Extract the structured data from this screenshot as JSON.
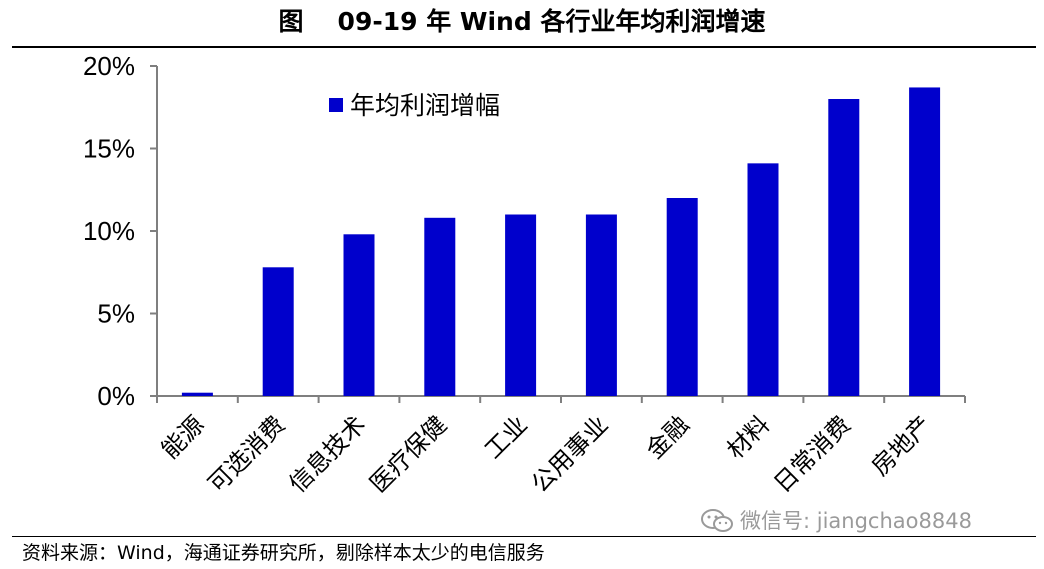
{
  "header": {
    "figure_label": "图",
    "title": "09-19 年 Wind 各行业年均利润增速"
  },
  "chart_data": {
    "type": "bar",
    "title": "",
    "xlabel": "",
    "ylabel": "",
    "categories": [
      "能源",
      "可选消费",
      "信息技术",
      "医疗保健",
      "工业",
      "公用事业",
      "金融",
      "材料",
      "日常消费",
      "房地产"
    ],
    "series": [
      {
        "name": "年均利润增幅",
        "values": [
          0.2,
          7.8,
          9.8,
          10.8,
          11.0,
          11.0,
          12.0,
          14.1,
          18.0,
          18.7
        ]
      }
    ],
    "ylim": [
      0,
      20
    ],
    "yticks": [
      0,
      5,
      10,
      15,
      20
    ],
    "ytick_labels": [
      "0%",
      "5%",
      "10%",
      "15%",
      "20%"
    ],
    "grid": false,
    "legend_position": "top-left",
    "colors": {
      "bar": "#0000cc",
      "axis": "#7f7f7f"
    }
  },
  "footer": {
    "source": "资料来源：Wind，海通证券研究所，剔除样本太少的电信服务",
    "watermark_icon": "wechat-icon",
    "watermark": "微信号: jiangchao8848"
  }
}
